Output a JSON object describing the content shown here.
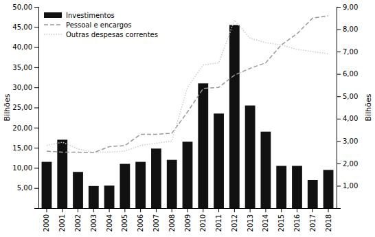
{
  "chart_data": {
    "type": "bar",
    "categories": [
      "2000",
      "2001",
      "2002",
      "2003",
      "2004",
      "2005",
      "2006",
      "2007",
      "2008",
      "2009",
      "2010",
      "2011",
      "2012",
      "2013",
      "2014",
      "2015",
      "2016",
      "2017",
      "2018"
    ],
    "series": [
      {
        "name": "Investimentos",
        "type": "bar",
        "color": "#111111",
        "values": [
          11.5,
          17.0,
          9.0,
          5.5,
          5.6,
          11.0,
          11.5,
          14.8,
          12.0,
          16.5,
          31.0,
          23.5,
          45.5,
          25.5,
          19.0,
          10.5,
          10.5,
          7.0,
          9.5
        ]
      },
      {
        "name": "Pessoal e encargos",
        "type": "line",
        "color": "#999999",
        "line_style": "dashed",
        "axis": "y2",
        "values": [
          2.55,
          2.5,
          2.5,
          2.48,
          2.75,
          2.8,
          3.3,
          3.3,
          3.35,
          4.3,
          5.35,
          5.4,
          5.95,
          6.25,
          6.5,
          7.3,
          7.8,
          8.5,
          8.6
        ]
      },
      {
        "name": "Outras despesas correntes",
        "type": "line",
        "color": "#cccccc",
        "line_style": "dotted",
        "axis": "y2",
        "values": [
          2.8,
          2.95,
          2.65,
          2.5,
          2.5,
          2.55,
          2.8,
          2.9,
          3.0,
          5.4,
          6.4,
          6.5,
          8.4,
          7.6,
          7.4,
          7.3,
          7.1,
          7.0,
          6.9
        ]
      }
    ],
    "ylim": [
      0,
      50
    ],
    "yticks": [
      {
        "value": 5.0,
        "label": "5,00"
      },
      {
        "value": 10.0,
        "label": "10,00"
      },
      {
        "value": 15.0,
        "label": "15,00"
      },
      {
        "value": 20.0,
        "label": "20,00"
      },
      {
        "value": 25.0,
        "label": "25,00"
      },
      {
        "value": 30.0,
        "label": "30,00"
      },
      {
        "value": 35.0,
        "label": "35,00"
      },
      {
        "value": 40.0,
        "label": "40,00"
      },
      {
        "value": 45.0,
        "label": "45,00"
      },
      {
        "value": 50.0,
        "label": "50,00"
      }
    ],
    "y2lim": [
      0,
      9.0
    ],
    "y2ticks": [
      {
        "value": 1.0,
        "label": "1,00"
      },
      {
        "value": 2.0,
        "label": "2,00"
      },
      {
        "value": 3.0,
        "label": "3,00"
      },
      {
        "value": 4.0,
        "label": "4,00"
      },
      {
        "value": 5.0,
        "label": "5,00"
      },
      {
        "value": 6.0,
        "label": "6,00"
      },
      {
        "value": 7.0,
        "label": "7,00"
      },
      {
        "value": 8.0,
        "label": "8,00"
      },
      {
        "value": 9.0,
        "label": "9,00"
      }
    ],
    "ylabel": "Bilhões",
    "y2label": "Bilhões",
    "grid": false,
    "legend": "upper left"
  }
}
